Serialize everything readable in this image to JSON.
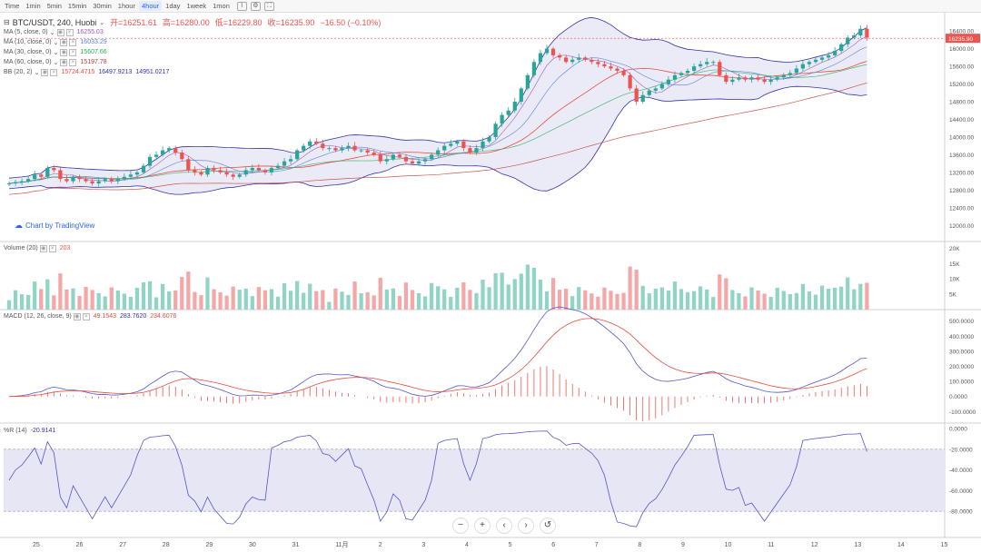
{
  "toolbar": {
    "timeframes": [
      "Time",
      "1min",
      "5min",
      "15min",
      "30min",
      "1hour",
      "4hour",
      "1day",
      "1week",
      "1mon"
    ],
    "active_index": 6,
    "icons": [
      "chart-type-icon",
      "settings-icon",
      "fullscreen-icon"
    ]
  },
  "header": {
    "symbol": "BTC/USDT, 240, Huobi",
    "open_label": "开=16251.61",
    "high_label": "高=16280.00",
    "low_label": "低=16229.80",
    "close_label": "收=16235.90",
    "change_label": "−16.50 (−0.10%)"
  },
  "indicators": [
    {
      "label": "MA (5, close, 0)",
      "value": "16255.03",
      "color": "#9b59b6"
    },
    {
      "label": "MA (10, close, 0)",
      "value": "16033.29",
      "color": "#5b7fd8"
    },
    {
      "label": "MA (30, close, 0)",
      "value": "15607.66",
      "color": "#27ae60"
    },
    {
      "label": "MA (60, close, 0)",
      "value": "15197.78",
      "color": "#c0392b"
    }
  ],
  "bb": {
    "label": "BB (20, 2)",
    "v1": "15724.4715",
    "v2": "16497.9213",
    "v3": "14951.0217",
    "c1": "#e74c3c",
    "c2": "#3333aa",
    "c3": "#3333aa"
  },
  "watermark": "Chart by TradingView",
  "price_axis": [
    "16400.00",
    "16000.00",
    "15600.00",
    "15200.00",
    "14800.00",
    "14400.00",
    "14000.00",
    "13600.00",
    "13200.00",
    "12800.00",
    "12400.00",
    "12000.00"
  ],
  "last_price": "16235.90",
  "volume": {
    "label": "Volume (20)",
    "value": "203",
    "axis": [
      "20K",
      "15K",
      "10K",
      "5K"
    ]
  },
  "macd": {
    "label": "MACD (12, 26, close, 9)",
    "v1": "49.1543",
    "v2": "283.7620",
    "v3": "234.6076",
    "axis": [
      "500.0000",
      "400.0000",
      "300.0000",
      "200.0000",
      "100.0000",
      "0.0000",
      "-100.0000"
    ]
  },
  "wr": {
    "label": "%R (14)",
    "value": "-20.9141",
    "axis": [
      "0.0000",
      "-20.0000",
      "-40.0000",
      "-60.0000",
      "-80.0000"
    ]
  },
  "time_axis": [
    "25",
    "26",
    "27",
    "28",
    "29",
    "30",
    "31",
    "11月",
    "2",
    "3",
    "4",
    "5",
    "6",
    "7",
    "8",
    "9",
    "10",
    "11",
    "12",
    "13",
    "14",
    "15"
  ],
  "nav": [
    "−",
    "+",
    "‹",
    "›",
    "↺"
  ],
  "colors": {
    "up": "#26a69a",
    "down": "#ef5350",
    "up_vol": "#8fd4c4",
    "down_vol": "#f5a6a6",
    "bb_fill": "#e6e6f5"
  },
  "chart_data": {
    "type": "candlestick",
    "closes": [
      12950,
      12980,
      13000,
      13050,
      13150,
      13100,
      13300,
      13250,
      13050,
      13000,
      13100,
      13050,
      13000,
      12950,
      13000,
      13050,
      13000,
      13050,
      13100,
      13150,
      13200,
      13350,
      13550,
      13600,
      13700,
      13750,
      13650,
      13500,
      13250,
      13200,
      13150,
      13300,
      13250,
      13200,
      13150,
      13100,
      13150,
      13250,
      13300,
      13250,
      13200,
      13300,
      13350,
      13450,
      13500,
      13700,
      13800,
      13900,
      13850,
      13750,
      13750,
      13700,
      13750,
      13800,
      13700,
      13700,
      13650,
      13600,
      13450,
      13500,
      13600,
      13550,
      13450,
      13400,
      13450,
      13500,
      13600,
      13700,
      13800,
      13850,
      13900,
      13750,
      13650,
      13750,
      13900,
      14000,
      14300,
      14500,
      14600,
      14800,
      15100,
      15400,
      15700,
      15900,
      16000,
      15850,
      15800,
      15700,
      15750,
      15800,
      15750,
      15700,
      15650,
      15600,
      15550,
      15500,
      15400,
      15100,
      14800,
      14950,
      15050,
      15100,
      15200,
      15300,
      15400,
      15450,
      15500,
      15600,
      15650,
      15700,
      15700,
      15400,
      15250,
      15300,
      15350,
      15300,
      15350,
      15300,
      15250,
      15300,
      15350,
      15400,
      15450,
      15550,
      15650,
      15700,
      15750,
      15800,
      15850,
      15950,
      16100,
      16250,
      16300,
      16450,
      16250
    ]
  }
}
